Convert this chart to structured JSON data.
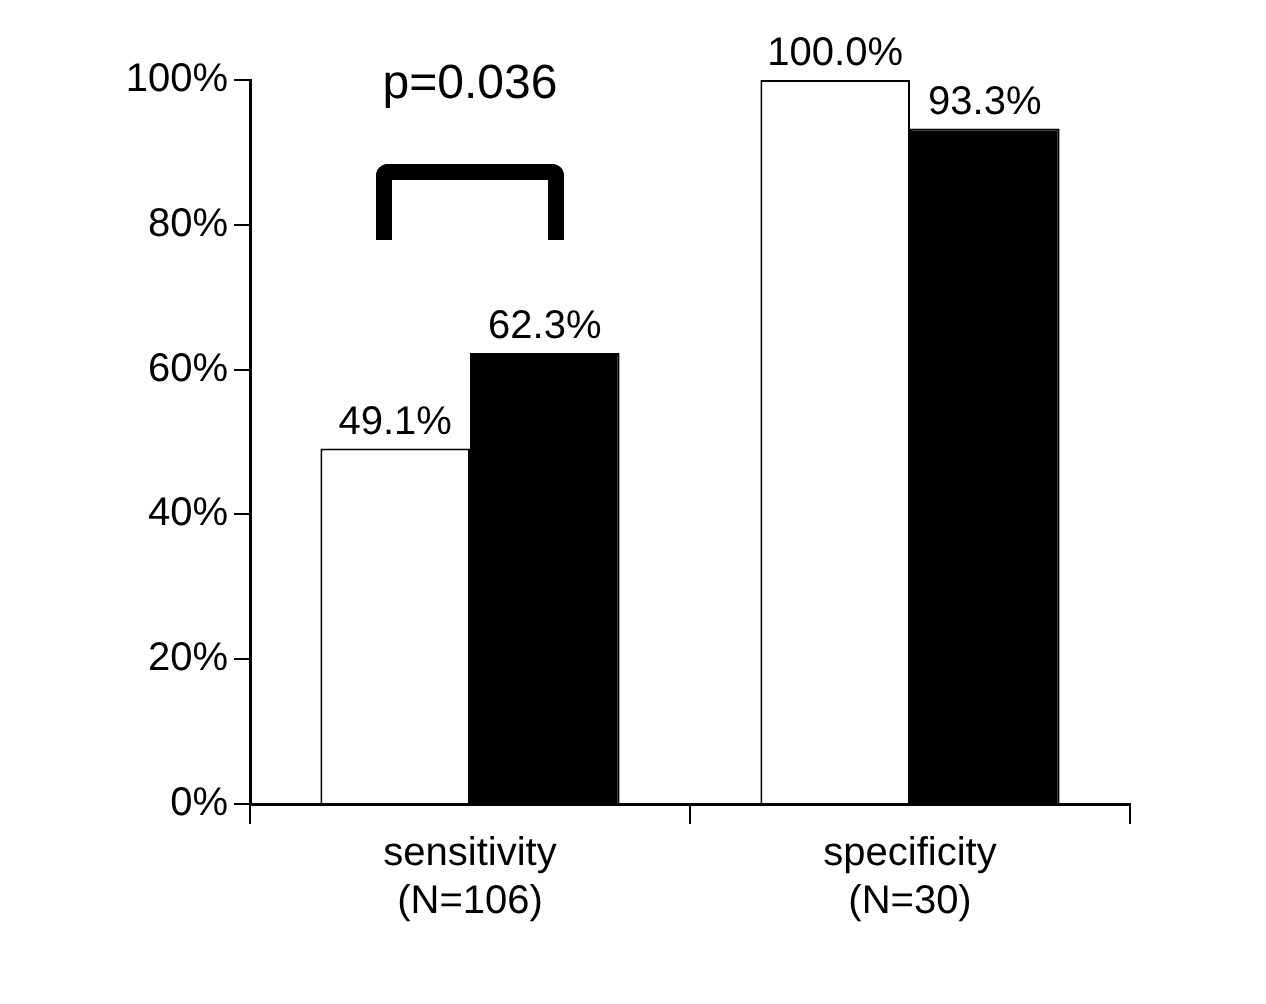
{
  "chart_data": {
    "type": "bar",
    "categories": [
      "sensitivity\n(N=106)",
      "specificity\n(N=30)"
    ],
    "series": [
      {
        "color": "#ffffff",
        "values": [
          49.1,
          100.0
        ],
        "value_labels": [
          "49.1%",
          "100.0%"
        ]
      },
      {
        "color": "#000000",
        "values": [
          62.3,
          93.3
        ],
        "value_labels": [
          "62.3%",
          "93.3%"
        ]
      }
    ],
    "ylim": [
      0,
      100
    ],
    "yticks": [
      {
        "value": 0,
        "label": "0%"
      },
      {
        "value": 20,
        "label": "20%"
      },
      {
        "value": 40,
        "label": "40%"
      },
      {
        "value": 60,
        "label": "60%"
      },
      {
        "value": 80,
        "label": "80%"
      },
      {
        "value": 100,
        "label": "100%"
      }
    ],
    "grid": false,
    "legend": false,
    "annotations": [
      "p=0.036"
    ]
  }
}
